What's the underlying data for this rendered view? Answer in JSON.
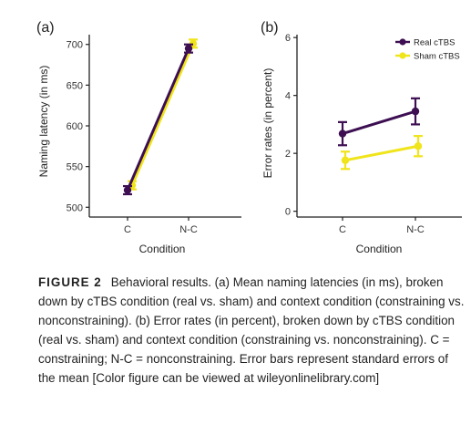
{
  "figure": {
    "colors": {
      "real": "#3d0f52",
      "sham": "#f0e41a",
      "axis": "#222222",
      "text": "#222222"
    },
    "caption": {
      "label": "FIGURE 2",
      "text": "Behavioral results. (a) Mean naming latencies (in ms), broken down by cTBS condition (real vs. sham) and context condition (constraining vs. nonconstraining). (b) Error rates (in percent), broken down by cTBS condition (real vs. sham) and context condition (constraining vs. nonconstraining). C = constraining; N-C = nonconstraining. Error bars represent standard errors of the mean [Color figure can be viewed at wileyonlinelibrary.com]"
    }
  },
  "chart_data": [
    {
      "type": "line",
      "panel": "(a)",
      "xlabel": "Condition",
      "ylabel": "Naming latency (in ms)",
      "categories": [
        "C",
        "N-C"
      ],
      "ylim": [
        488,
        712
      ],
      "yticks": [
        500,
        550,
        600,
        650,
        700
      ],
      "grid": false,
      "series": [
        {
          "name": "Real cTBS",
          "color": "#3d0f52",
          "values": [
            521,
            695
          ],
          "errors": [
            5,
            5
          ]
        },
        {
          "name": "Sham cTBS",
          "color": "#f0e41a",
          "values": [
            527,
            701
          ],
          "errors": [
            5,
            5
          ]
        }
      ]
    },
    {
      "type": "line",
      "panel": "(b)",
      "xlabel": "Condition",
      "ylabel": "Error rates (in percent)",
      "categories": [
        "C",
        "N-C"
      ],
      "ylim": [
        -0.2,
        6.1
      ],
      "yticks": [
        0,
        2,
        4,
        6
      ],
      "grid": false,
      "legend": "top-right",
      "series": [
        {
          "name": "Real cTBS",
          "color": "#3d0f52",
          "values": [
            2.68,
            3.45
          ],
          "errors": [
            0.4,
            0.45
          ]
        },
        {
          "name": "Sham cTBS",
          "color": "#f0e41a",
          "values": [
            1.76,
            2.25
          ],
          "errors": [
            0.3,
            0.35
          ]
        }
      ]
    }
  ]
}
